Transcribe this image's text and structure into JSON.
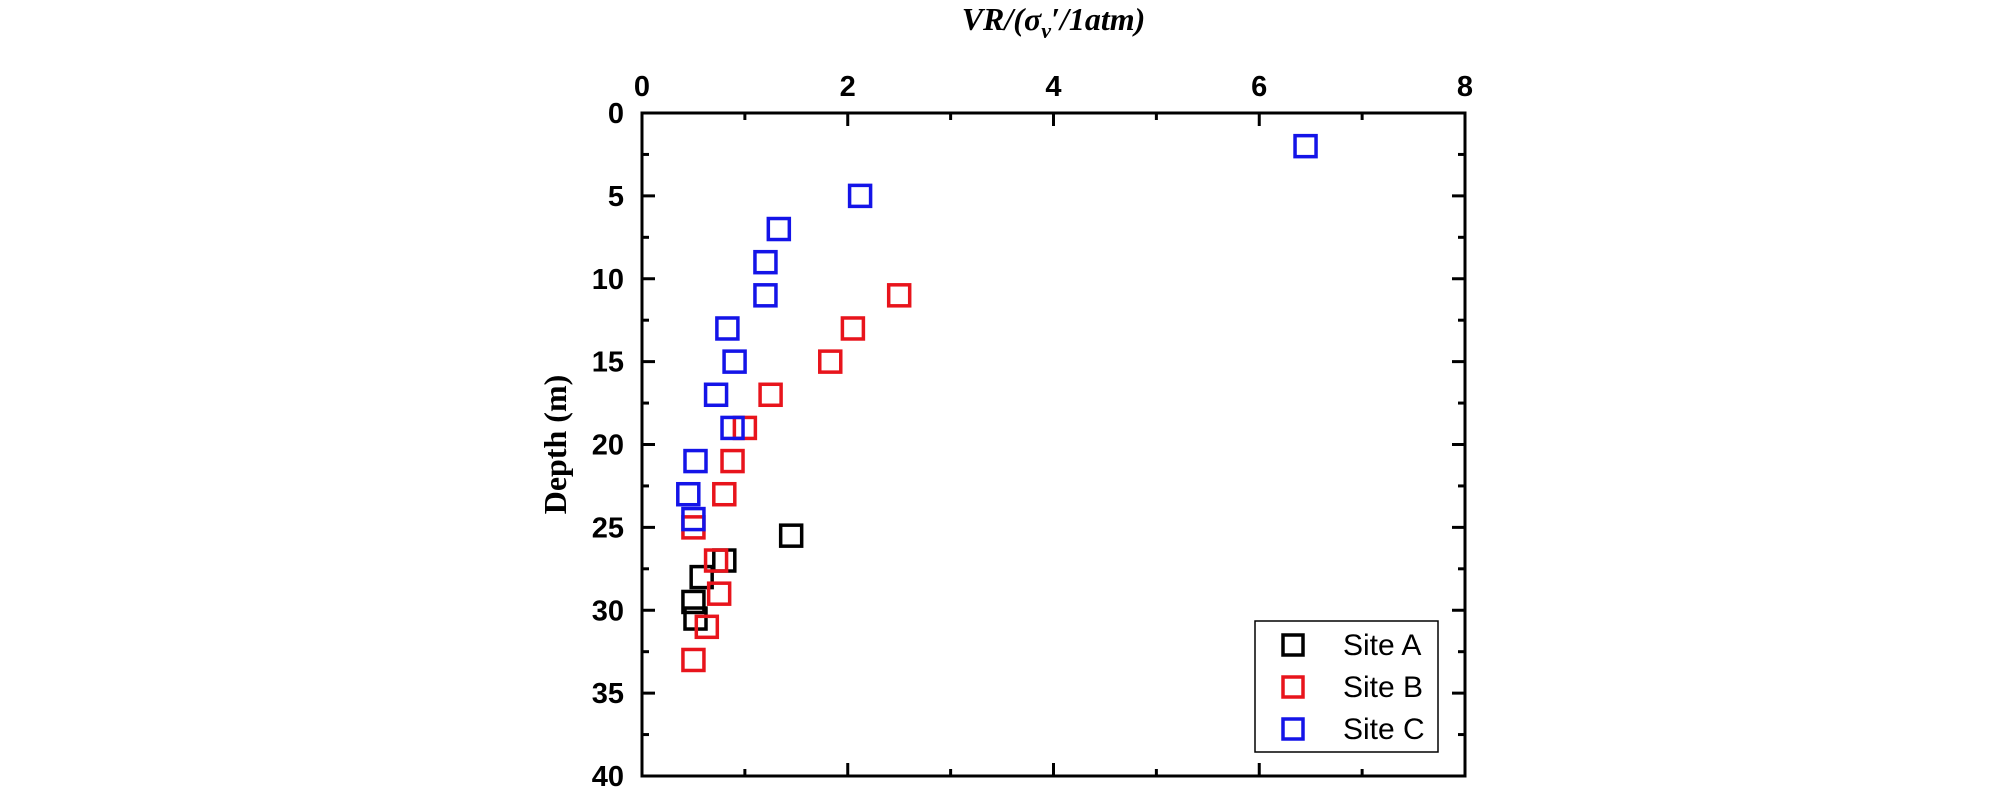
{
  "chart_data": {
    "type": "scatter",
    "title": "",
    "xlabel": "VR/(σv′/1atm)",
    "xlabel_parts": {
      "before": "VR/(σ",
      "sub": "v",
      "after": "′/1atm)"
    },
    "ylabel": "Depth (m)",
    "x_axis_position": "top",
    "y_axis_inverted": true,
    "xlim": [
      0,
      8
    ],
    "ylim": [
      0,
      40
    ],
    "xticks": [
      0,
      2,
      4,
      6,
      8
    ],
    "yticks": [
      0,
      5,
      10,
      15,
      20,
      25,
      30,
      35,
      40
    ],
    "xtick_labels": [
      "0",
      "2",
      "4",
      "6",
      "8"
    ],
    "ytick_labels": [
      "0",
      "5",
      "10",
      "15",
      "20",
      "25",
      "30",
      "35",
      "40"
    ],
    "grid": false,
    "marker": "open-square",
    "legend_position": "bottom-right",
    "series": [
      {
        "name": "Site A",
        "color": "#000000",
        "points": [
          [
            1.45,
            25.5
          ],
          [
            0.8,
            27.0
          ],
          [
            0.58,
            28.0
          ],
          [
            0.5,
            29.5
          ],
          [
            0.52,
            30.5
          ]
        ]
      },
      {
        "name": "Site B",
        "color": "#e8141c",
        "points": [
          [
            2.5,
            11.0
          ],
          [
            2.05,
            13.0
          ],
          [
            1.83,
            15.0
          ],
          [
            1.25,
            17.0
          ],
          [
            1.0,
            19.0
          ],
          [
            0.88,
            21.0
          ],
          [
            0.8,
            23.0
          ],
          [
            0.5,
            25.0
          ],
          [
            0.72,
            27.0
          ],
          [
            0.75,
            29.0
          ],
          [
            0.63,
            31.0
          ],
          [
            0.5,
            33.0
          ]
        ]
      },
      {
        "name": "Site C",
        "color": "#1414e8",
        "points": [
          [
            6.45,
            2.0
          ],
          [
            2.12,
            5.0
          ],
          [
            1.33,
            7.0
          ],
          [
            1.2,
            9.0
          ],
          [
            1.2,
            11.0
          ],
          [
            0.83,
            13.0
          ],
          [
            0.9,
            15.0
          ],
          [
            0.72,
            17.0
          ],
          [
            0.88,
            19.0
          ],
          [
            0.52,
            21.0
          ],
          [
            0.45,
            23.0
          ],
          [
            0.5,
            24.5
          ]
        ]
      }
    ]
  }
}
